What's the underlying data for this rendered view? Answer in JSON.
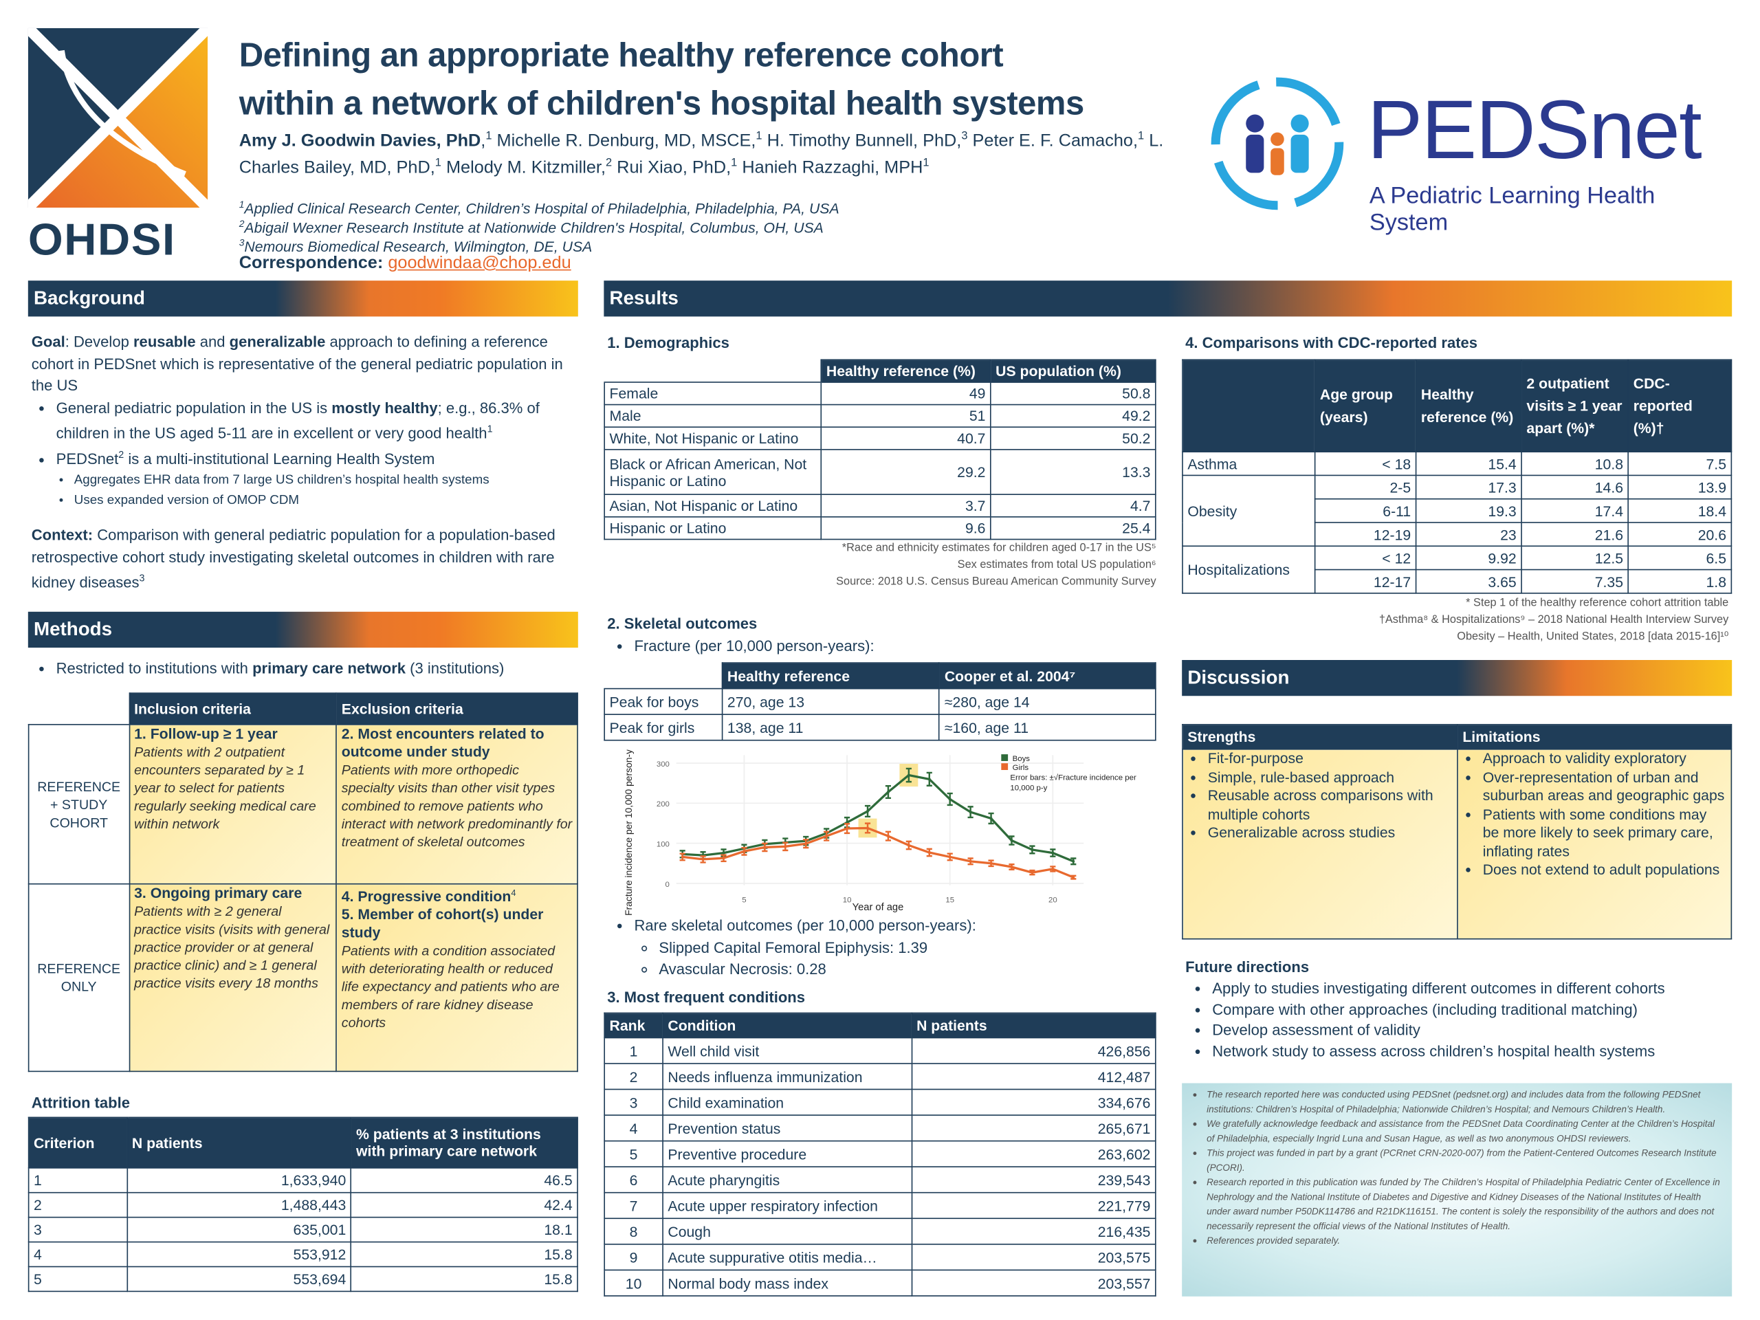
{
  "header": {
    "title_line1": "Defining an appropriate healthy reference cohort",
    "title_line2": "within a network of children's hospital health systems",
    "authors": [
      {
        "t": "Amy J. Goodwin Davies, PhD",
        "b": true
      },
      {
        "t": ",",
        "b": false
      },
      {
        "t": "1",
        "sup": true
      },
      {
        "t": " Michelle R. Denburg, MD, MSCE,"
      },
      {
        "t": "1",
        "sup": true
      },
      {
        "t": " H. Timothy Bunnell, PhD,"
      },
      {
        "t": "3",
        "sup": true
      },
      {
        "t": "  Peter E. F. Camacho,"
      },
      {
        "t": "1",
        "sup": true
      },
      {
        "t": " L. Charles Bailey, MD, PhD,"
      },
      {
        "t": "1",
        "sup": true
      },
      {
        "t": " Melody M. Kitzmiller,"
      },
      {
        "t": "2",
        "sup": true
      },
      {
        "t": " Rui Xiao, PhD,"
      },
      {
        "t": "1",
        "sup": true
      },
      {
        "t": " Hanieh Razzaghi, MPH"
      },
      {
        "t": "1",
        "sup": true
      }
    ],
    "affiliations": [
      {
        "n": "1",
        "text": "Applied Clinical Research Center, Children’s Hospital of Philadelphia, Philadelphia, PA, USA"
      },
      {
        "n": "2",
        "text": "Abigail Wexner Research Institute at Nationwide Children's Hospital, Columbus, OH, USA"
      },
      {
        "n": "3",
        "text": "Nemours Biomedical Research, Wilmington, DE, USA"
      }
    ],
    "correspondence_label": "Correspondence:",
    "correspondence_email": "goodwindaa@chop.edu",
    "ohdsi_logo": "OHDSI",
    "pedsnet_logo": "PEDSnet",
    "pedsnet_tagline": "A Pediatric Learning Health System",
    "colors": {
      "navy": "#1f3d58",
      "orange": "#e8762b",
      "yellow": "#f8c31b",
      "pedsnet_blue": "#2b3a8f",
      "pedsnet_cyan": "#29a6df"
    }
  },
  "background": {
    "heading": "Background",
    "goal": [
      {
        "t": "Goal",
        "b": true
      },
      {
        "t": ": Develop "
      },
      {
        "t": "reusable",
        "b": true
      },
      {
        "t": " and "
      },
      {
        "t": "generalizable",
        "b": true
      },
      {
        "t": " approach to defining a reference cohort in PEDSnet which is representative of the general pediatric population in the US"
      }
    ],
    "bullets": [
      [
        {
          "t": "General pediatric population in the US is "
        },
        {
          "t": "mostly healthy",
          "b": true
        },
        {
          "t": "; e.g., 86.3% of children in the US aged 5-11 are in excellent or very good health"
        },
        {
          "t": "1",
          "sup": true
        }
      ],
      [
        {
          "t": "PEDSnet"
        },
        {
          "t": "2",
          "sup": true
        },
        {
          "t": " is a multi-institutional Learning Health System"
        }
      ]
    ],
    "sub_bullets": [
      "Aggregates EHR data from 7 large US children’s hospital health systems",
      "Uses expanded version of OMOP CDM"
    ],
    "context": [
      {
        "t": "Context:",
        "b": true
      },
      {
        "t": " Comparison with general pediatric population for a population-based retrospective cohort study investigating skeletal outcomes in children with rare kidney diseases"
      },
      {
        "t": "3",
        "sup": true
      }
    ]
  },
  "methods": {
    "heading": "Methods",
    "bullet": [
      {
        "t": "Restricted to institutions with "
      },
      {
        "t": "primary care network",
        "b": true
      },
      {
        "t": " (3 institutions)"
      }
    ],
    "criteria": {
      "inclusion_header": "Inclusion criteria",
      "exclusion_header": "Exclusion criteria",
      "row1_label": "REFERENCE + STUDY COHORT",
      "row2_label": "REFERENCE ONLY",
      "inc1_title": "1. Follow-up ≥ 1 year",
      "inc1_text": "Patients with 2 outpatient encounters separated by ≥ 1 year to select for patients regularly seeking medical care within network",
      "exc2_title": "2. Most encounters related to outcome under study",
      "exc2_text": "Patients with more orthopedic specialty visits than other visit types combined to remove patients who interact with network predominantly for treatment of skeletal outcomes",
      "inc3_title": "3. Ongoing primary care",
      "inc3_text": "Patients with ≥ 2  general practice visits (visits with general practice provider or at general practice clinic) and ≥ 1 general practice visits every 18 months",
      "exc4_title": "4. Progressive condition",
      "exc4_sup": "4",
      "exc5_title": "5. Member of cohort(s) under study",
      "exc5_text": "Patients with a condition associated with deteriorating health or reduced life expectancy and patients who are members of rare kidney disease cohorts"
    },
    "attrition": {
      "title": "Attrition table",
      "headers": [
        "Criterion",
        "N patients",
        "% patients at 3 institutions with primary care network"
      ],
      "rows": [
        [
          "1",
          "1,633,940",
          "46.5"
        ],
        [
          "2",
          "1,488,443",
          "42.4"
        ],
        [
          "3",
          "635,001",
          "18.1"
        ],
        [
          "4",
          "553,912",
          "15.8"
        ],
        [
          "5",
          "553,694",
          "15.8"
        ]
      ]
    }
  },
  "results": {
    "heading": "Results",
    "demographics": {
      "title": "1. Demographics",
      "headers": [
        "",
        "Healthy reference (%)",
        "US population (%)"
      ],
      "rows": [
        [
          "Female",
          "49",
          "50.8"
        ],
        [
          "Male",
          "51",
          "49.2"
        ],
        [
          "White, Not Hispanic or Latino",
          "40.7",
          "50.2"
        ],
        [
          "Black or African American, Not Hispanic or Latino",
          "29.2",
          "13.3"
        ],
        [
          "Asian, Not Hispanic or Latino",
          "3.7",
          "4.7"
        ],
        [
          "Hispanic or Latino",
          "9.6",
          "25.4"
        ]
      ],
      "notes": [
        "*Race and ethnicity estimates for children aged 0-17 in the US⁵",
        "Sex estimates from total US population⁶",
        "Source: 2018 U.S. Census Bureau American Community Survey"
      ]
    },
    "skeletal": {
      "title": "2. Skeletal outcomes",
      "fracture_bullet": "Fracture (per 10,000 person-years):",
      "headers": [
        "",
        "Healthy reference",
        "Cooper et al. 2004⁷"
      ],
      "rows": [
        [
          "Peak for boys",
          "270, age 13",
          "≈280,  age 14"
        ],
        [
          "Peak for girls",
          "138, age 11",
          "≈160,  age 11"
        ]
      ],
      "rare_bullet": "Rare skeletal outcomes (per 10,000 person-years):",
      "rare_items": [
        "Slipped Capital Femoral Epiphysis: 1.39",
        "Avascular Necrosis: 0.28"
      ]
    },
    "conditions": {
      "title": "3. Most frequent conditions",
      "headers": [
        "Rank",
        "Condition",
        "N patients"
      ],
      "rows": [
        [
          "1",
          "Well child visit",
          "426,856"
        ],
        [
          "2",
          "Needs influenza immunization",
          "412,487"
        ],
        [
          "3",
          "Child examination",
          "334,676"
        ],
        [
          "4",
          "Prevention status",
          "265,671"
        ],
        [
          "5",
          "Preventive procedure",
          "263,602"
        ],
        [
          "6",
          "Acute pharyngitis",
          "239,543"
        ],
        [
          "7",
          "Acute upper respiratory infection",
          "221,779"
        ],
        [
          "8",
          "Cough",
          "216,435"
        ],
        [
          "9",
          "Acute suppurative otitis media…",
          "203,575"
        ],
        [
          "10",
          "Normal body mass index",
          "203,557"
        ]
      ]
    },
    "cdc": {
      "title": "4. Comparisons with CDC-reported rates",
      "headers": [
        "",
        "Age group (years)",
        "Healthy reference (%)",
        "2 outpatient visits  ≥ 1 year apart (%)*",
        "CDC-reported (%)†"
      ],
      "groups": [
        {
          "name": "Asthma",
          "rows": [
            [
              "< 18",
              "15.4",
              "10.8",
              "7.5"
            ]
          ]
        },
        {
          "name": "Obesity",
          "rows": [
            [
              "2-5",
              "17.3",
              "14.6",
              "13.9"
            ],
            [
              "6-11",
              "19.3",
              "17.4",
              "18.4"
            ],
            [
              "12-19",
              "23",
              "21.6",
              "20.6"
            ]
          ]
        },
        {
          "name": "Hospitalizations",
          "rows": [
            [
              "< 12",
              "9.92",
              "12.5",
              "6.5"
            ],
            [
              "12-17",
              "3.65",
              "7.35",
              "1.8"
            ]
          ]
        }
      ],
      "notes": [
        "* Step 1 of the healthy reference cohort attrition table",
        "†Asthma⁸ & Hospitalizations⁹ – 2018 National Health Interview Survey",
        "Obesity – Health, United States, 2018 [data 2015-16]¹⁰"
      ]
    }
  },
  "chart_data": {
    "type": "line",
    "xlabel": "Year of age",
    "ylabel": "Fracture incidence per 10,000 person-years",
    "xlim": [
      1.5,
      21.5
    ],
    "ylim": [
      0,
      320
    ],
    "xticks": [
      5,
      10,
      15,
      20
    ],
    "yticks": [
      0,
      100,
      200,
      300
    ],
    "grid": true,
    "legend_position": "top-right",
    "legend_note": "Error bars: ±√Fracture incidence per 10,000 p-y",
    "x": [
      2,
      3,
      4,
      5,
      6,
      7,
      8,
      9,
      10,
      11,
      12,
      13,
      14,
      15,
      16,
      17,
      18,
      19,
      20,
      21
    ],
    "series": [
      {
        "name": "Boys",
        "color": "#2e6b3a",
        "values": [
          73,
          70,
          76,
          87,
          98,
          102,
          106,
          125,
          152,
          180,
          228,
          270,
          260,
          210,
          178,
          162,
          107,
          84,
          76,
          55
        ]
      },
      {
        "name": "Girls",
        "color": "#e8692e",
        "values": [
          66,
          60,
          63,
          80,
          90,
          92,
          99,
          118,
          137,
          138,
          118,
          95,
          77,
          66,
          55,
          50,
          41,
          27,
          36,
          15
        ]
      }
    ],
    "highlights": [
      {
        "series": "Boys",
        "x": 13
      },
      {
        "series": "Girls",
        "x": 11
      }
    ],
    "highlight_color": "#f8dc7a"
  },
  "discussion": {
    "heading": "Discussion",
    "strengths_header": "Strengths",
    "limitations_header": "Limitations",
    "strengths": [
      "Fit-for-purpose",
      "Simple, rule-based approach",
      "Reusable across comparisons with multiple cohorts",
      "Generalizable across studies"
    ],
    "limitations": [
      "Approach to validity exploratory",
      "Over-representation of urban and suburban areas and geographic gaps",
      "Patients with some conditions may be more likely to seek primary care, inflating rates",
      "Does not extend to adult populations"
    ],
    "future_title": "Future directions",
    "future": [
      "Apply to studies investigating different outcomes in different cohorts",
      "Compare with other approaches (including traditional matching)",
      "Develop assessment of validity",
      "Network study to assess across children’s hospital health systems"
    ]
  },
  "acknowledgements": [
    "The research reported here was conducted using PEDSnet (pedsnet.org) and  includes data from the following PEDSnet institutions: Children’s Hospital of Philadelphia; Nationwide Children’s Hospital; and Nemours Children’s Health.",
    "We gratefully acknowledge feedback and assistance from the PEDSnet Data Coordinating Center at the Children’s Hospital of Philadelphia, especially Ingrid Luna and Susan Hague, as well as two anonymous OHDSI reviewers.",
    "This project was funded in part by a grant (PCRnet CRN-2020-007) from the Patient-Centered Outcomes Research Institute (PCORI).",
    "Research reported in this publication was funded by The Children’s Hospital of Philadelphia Pediatric Center of Excellence in Nephrology and the National Institute of Diabetes and Digestive and Kidney Diseases of the National Institutes of Health under award number P50DK114786 and R21DK116151. The content is solely the responsibility of the authors and does not necessarily represent the official views of the National Institutes of Health.",
    "References provided separately."
  ]
}
